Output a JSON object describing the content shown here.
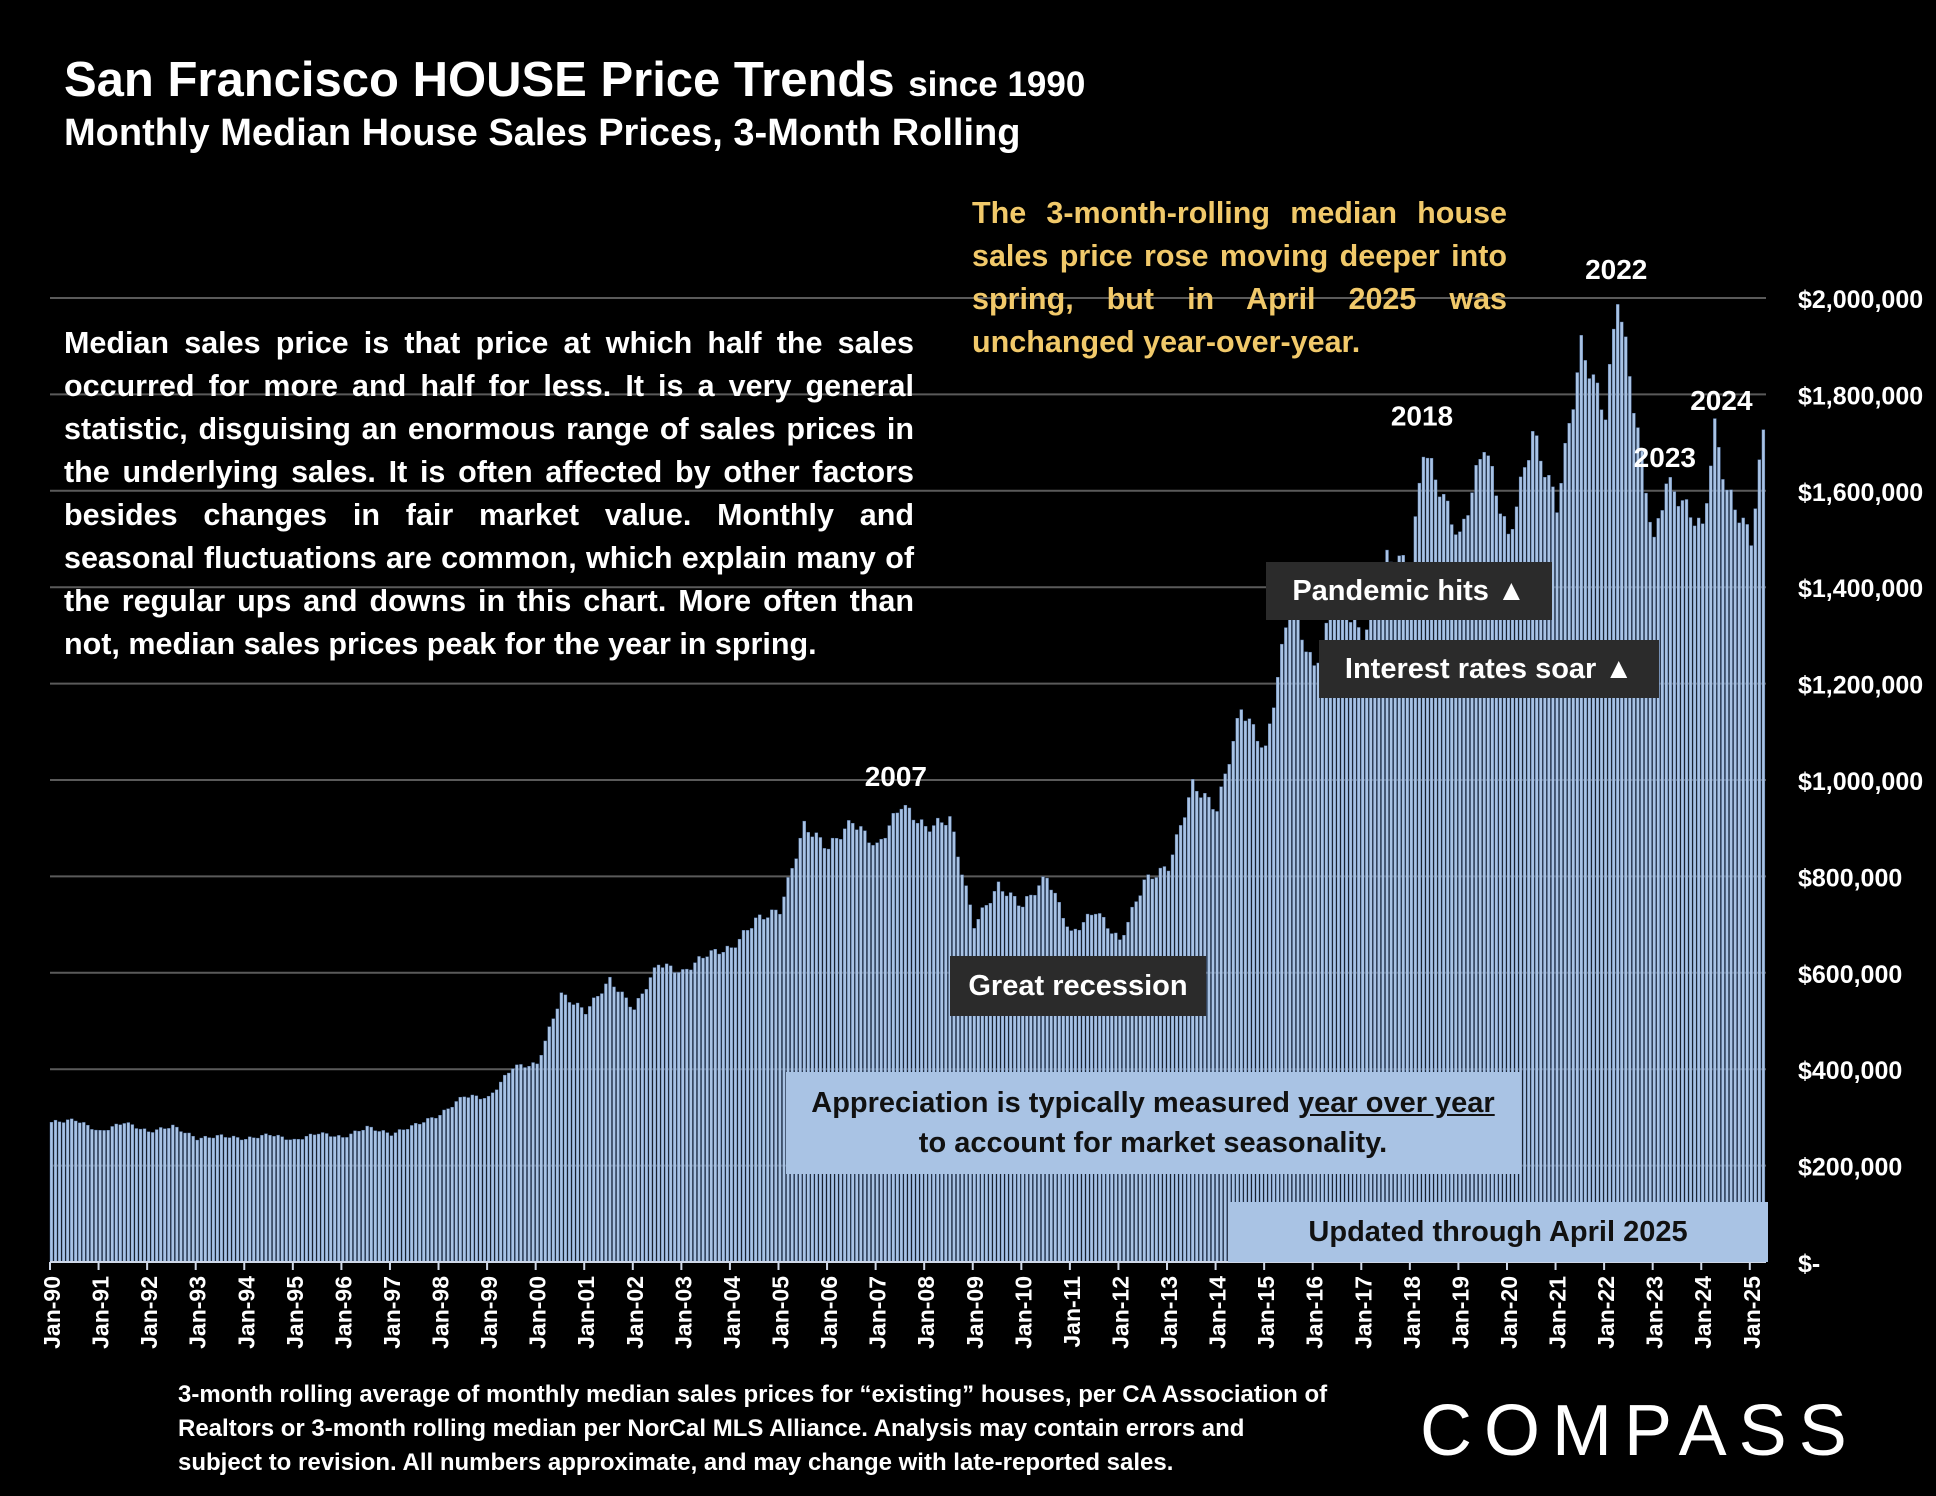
{
  "title": "San Francisco HOUSE Price Trends",
  "title_suffix": "since 1990",
  "subtitle": "Monthly Median House Sales Prices, 3-Month Rolling",
  "explanation": "Median sales price is that price at which half the sales occurred for more and half for less. It is a very general statistic, disguising an enormous range of sales prices in the underlying sales. It is often affected by other factors besides changes in fair market value. Monthly and seasonal fluctuations are common, which explain many of the regular ups and downs in this chart. More often than not, median sales prices peak for the year in spring.",
  "callout": "The 3-month-rolling median house sales price rose moving deeper into spring, but in April 2025 was unchanged year-over-year.",
  "boxes": {
    "pandemic": "Pandemic hits ▲",
    "rates": "Interest rates soar ▲",
    "recession": "Great recession",
    "appreciation_pre": "Appreciation is typically measured ",
    "appreciation_link": "year over year",
    "appreciation_post": "to account for market seasonality.",
    "updated": "Updated through April 2025"
  },
  "footnote": "3-month rolling average of monthly median sales prices for “existing” houses, per CA Association of Realtors or 3-month rolling median per NorCal MLS Alliance. Analysis may contain errors and subject to revision. All numbers approximate, and may change with late-reported sales.",
  "logo": "COMPASS",
  "colors": {
    "bar": "#a9c3e4",
    "bar_edge": "#5b7db0",
    "grid": "#5a5a5a",
    "callout": "#f1c96a"
  },
  "chart_data": {
    "type": "bar",
    "title": "San Francisco HOUSE Price Trends since 1990",
    "subtitle": "Monthly Median House Sales Prices, 3-Month Rolling",
    "xlabel": "",
    "ylabel": "",
    "ylim": [
      0,
      2000000
    ],
    "grid": true,
    "y_ticks": [
      0,
      200000,
      400000,
      600000,
      800000,
      1000000,
      1200000,
      1400000,
      1600000,
      1800000,
      2000000
    ],
    "y_tick_labels": [
      "$-",
      "$200,000",
      "$400,000",
      "$600,000",
      "$800,000",
      "$1,000,000",
      "$1,200,000",
      "$1,400,000",
      "$1,600,000",
      "$1,800,000",
      "$2,000,000"
    ],
    "x_tick_labels": [
      "Jan-90",
      "Jan-91",
      "Jan-92",
      "Jan-93",
      "Jan-94",
      "Jan-95",
      "Jan-96",
      "Jan-97",
      "Jan-98",
      "Jan-99",
      "Jan-00",
      "Jan-01",
      "Jan-02",
      "Jan-03",
      "Jan-04",
      "Jan-05",
      "Jan-06",
      "Jan-07",
      "Jan-08",
      "Jan-09",
      "Jan-10",
      "Jan-11",
      "Jan-12",
      "Jan-13",
      "Jan-14",
      "Jan-15",
      "Jan-16",
      "Jan-17",
      "Jan-18",
      "Jan-19",
      "Jan-20",
      "Jan-21",
      "Jan-22",
      "Jan-23",
      "Jan-24",
      "Jan-25"
    ],
    "start_month": "Jan-90",
    "end_month": "Apr-25",
    "annotations": [
      {
        "label": "2007",
        "month": "Jun-07",
        "value": 950000
      },
      {
        "label": "2018",
        "month": "Apr-18",
        "value": 1690000
      },
      {
        "label": "2022",
        "month": "Apr-22",
        "value": 2010000
      },
      {
        "label": "2023",
        "month": "Apr-23",
        "value": 1620000
      },
      {
        "label": "2024",
        "month": "Apr-24",
        "value": 1730000
      }
    ],
    "anchors": [
      [
        "Jan-90",
        290000
      ],
      [
        "Jul-90",
        295000
      ],
      [
        "Jan-91",
        270000
      ],
      [
        "Jul-91",
        290000
      ],
      [
        "Jan-92",
        270000
      ],
      [
        "Jul-92",
        282000
      ],
      [
        "Jan-93",
        256000
      ],
      [
        "Jul-93",
        262000
      ],
      [
        "Jan-94",
        255000
      ],
      [
        "Jul-94",
        265000
      ],
      [
        "Jan-95",
        252000
      ],
      [
        "Jul-95",
        268000
      ],
      [
        "Jan-96",
        258000
      ],
      [
        "Jul-96",
        280000
      ],
      [
        "Jan-97",
        265000
      ],
      [
        "Jul-97",
        285000
      ],
      [
        "Jan-98",
        305000
      ],
      [
        "Jul-98",
        345000
      ],
      [
        "Jan-99",
        340000
      ],
      [
        "Jul-99",
        405000
      ],
      [
        "Jan-00",
        410000
      ],
      [
        "Jul-00",
        555000
      ],
      [
        "Jan-01",
        520000
      ],
      [
        "Jul-01",
        585000
      ],
      [
        "Jan-02",
        525000
      ],
      [
        "Jul-02",
        620000
      ],
      [
        "Jan-03",
        600000
      ],
      [
        "Jul-03",
        640000
      ],
      [
        "Jan-04",
        650000
      ],
      [
        "Jul-04",
        710000
      ],
      [
        "Jan-05",
        730000
      ],
      [
        "Jul-05",
        905000
      ],
      [
        "Jan-06",
        860000
      ],
      [
        "Jul-06",
        915000
      ],
      [
        "Jan-07",
        860000
      ],
      [
        "Jul-07",
        950000
      ],
      [
        "Jan-08",
        900000
      ],
      [
        "Jul-08",
        920000
      ],
      [
        "Jan-09",
        700000
      ],
      [
        "Jul-09",
        780000
      ],
      [
        "Jan-10",
        740000
      ],
      [
        "Jul-10",
        800000
      ],
      [
        "Jan-11",
        680000
      ],
      [
        "Jul-11",
        730000
      ],
      [
        "Jan-12",
        665000
      ],
      [
        "Jul-12",
        790000
      ],
      [
        "Jan-13",
        820000
      ],
      [
        "Jul-13",
        990000
      ],
      [
        "Jan-14",
        940000
      ],
      [
        "Jul-14",
        1150000
      ],
      [
        "Jan-15",
        1060000
      ],
      [
        "Jul-15",
        1370000
      ],
      [
        "Jan-16",
        1230000
      ],
      [
        "Jul-16",
        1390000
      ],
      [
        "Jan-17",
        1290000
      ],
      [
        "Jul-17",
        1460000
      ],
      [
        "Jan-18",
        1450000
      ],
      [
        "Apr-18",
        1690000
      ],
      [
        "Jan-19",
        1500000
      ],
      [
        "Jul-19",
        1700000
      ],
      [
        "Jan-20",
        1500000
      ],
      [
        "Jul-20",
        1720000
      ],
      [
        "Jan-21",
        1570000
      ],
      [
        "Jul-21",
        1900000
      ],
      [
        "Jan-22",
        1760000
      ],
      [
        "Apr-22",
        2010000
      ],
      [
        "Jul-22",
        1840000
      ],
      [
        "Jan-23",
        1490000
      ],
      [
        "Apr-23",
        1620000
      ],
      [
        "Jan-24",
        1520000
      ],
      [
        "Apr-24",
        1730000
      ],
      [
        "Jul-24",
        1600000
      ],
      [
        "Jan-25",
        1500000
      ],
      [
        "Apr-25",
        1720000
      ]
    ]
  }
}
